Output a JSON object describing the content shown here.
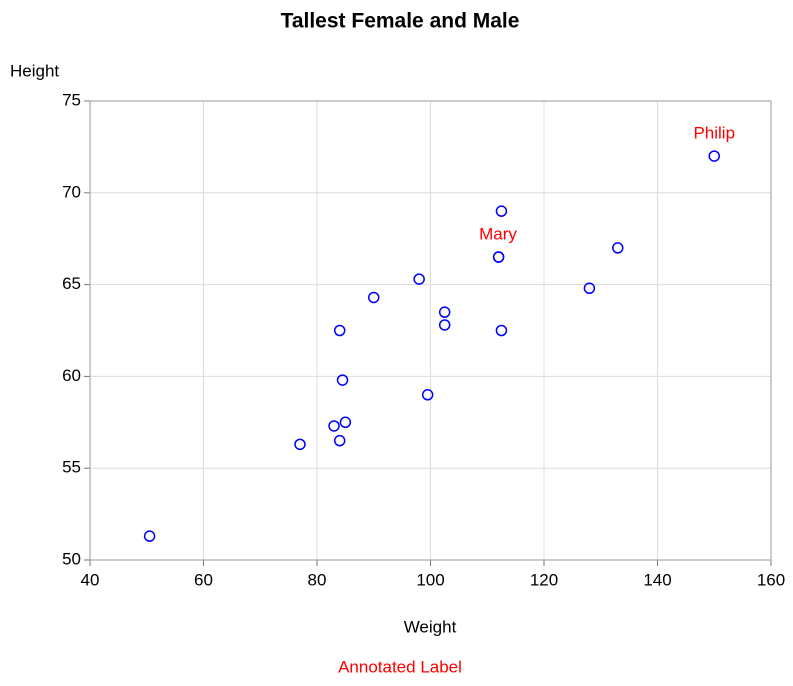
{
  "chart_data": {
    "type": "scatter",
    "title": "Tallest Female and Male",
    "xlabel": "Weight",
    "ylabel": "Height",
    "footnote": "Annotated Label",
    "series": [
      {
        "color": "#0000ff",
        "x": [
          112.5,
          84,
          98,
          102.5,
          102.5,
          83,
          84.5,
          112.5,
          84,
          99.5,
          50.5,
          90,
          77,
          112,
          150,
          128,
          133,
          85,
          112
        ],
        "values": [
          69,
          56.5,
          65.3,
          62.8,
          63.5,
          57.3,
          59.8,
          62.5,
          62.5,
          59,
          51.3,
          64.3,
          56.3,
          66.5,
          72,
          64.8,
          67,
          57.5,
          66.5
        ]
      }
    ],
    "annotations": [
      {
        "text": "Mary",
        "x": 111.9,
        "y": 67.7,
        "color": "#ff0000"
      },
      {
        "text": "Philip",
        "x": 150,
        "y": 73.2,
        "color": "#ff0000"
      }
    ],
    "footnote_color": "#ff0000",
    "xlim": [
      40,
      160
    ],
    "xticks": [
      40,
      60,
      80,
      100,
      120,
      140,
      160
    ],
    "ylim": [
      50,
      75
    ],
    "yticks": [
      50,
      55,
      60,
      65,
      70,
      75
    ],
    "grid": true
  }
}
